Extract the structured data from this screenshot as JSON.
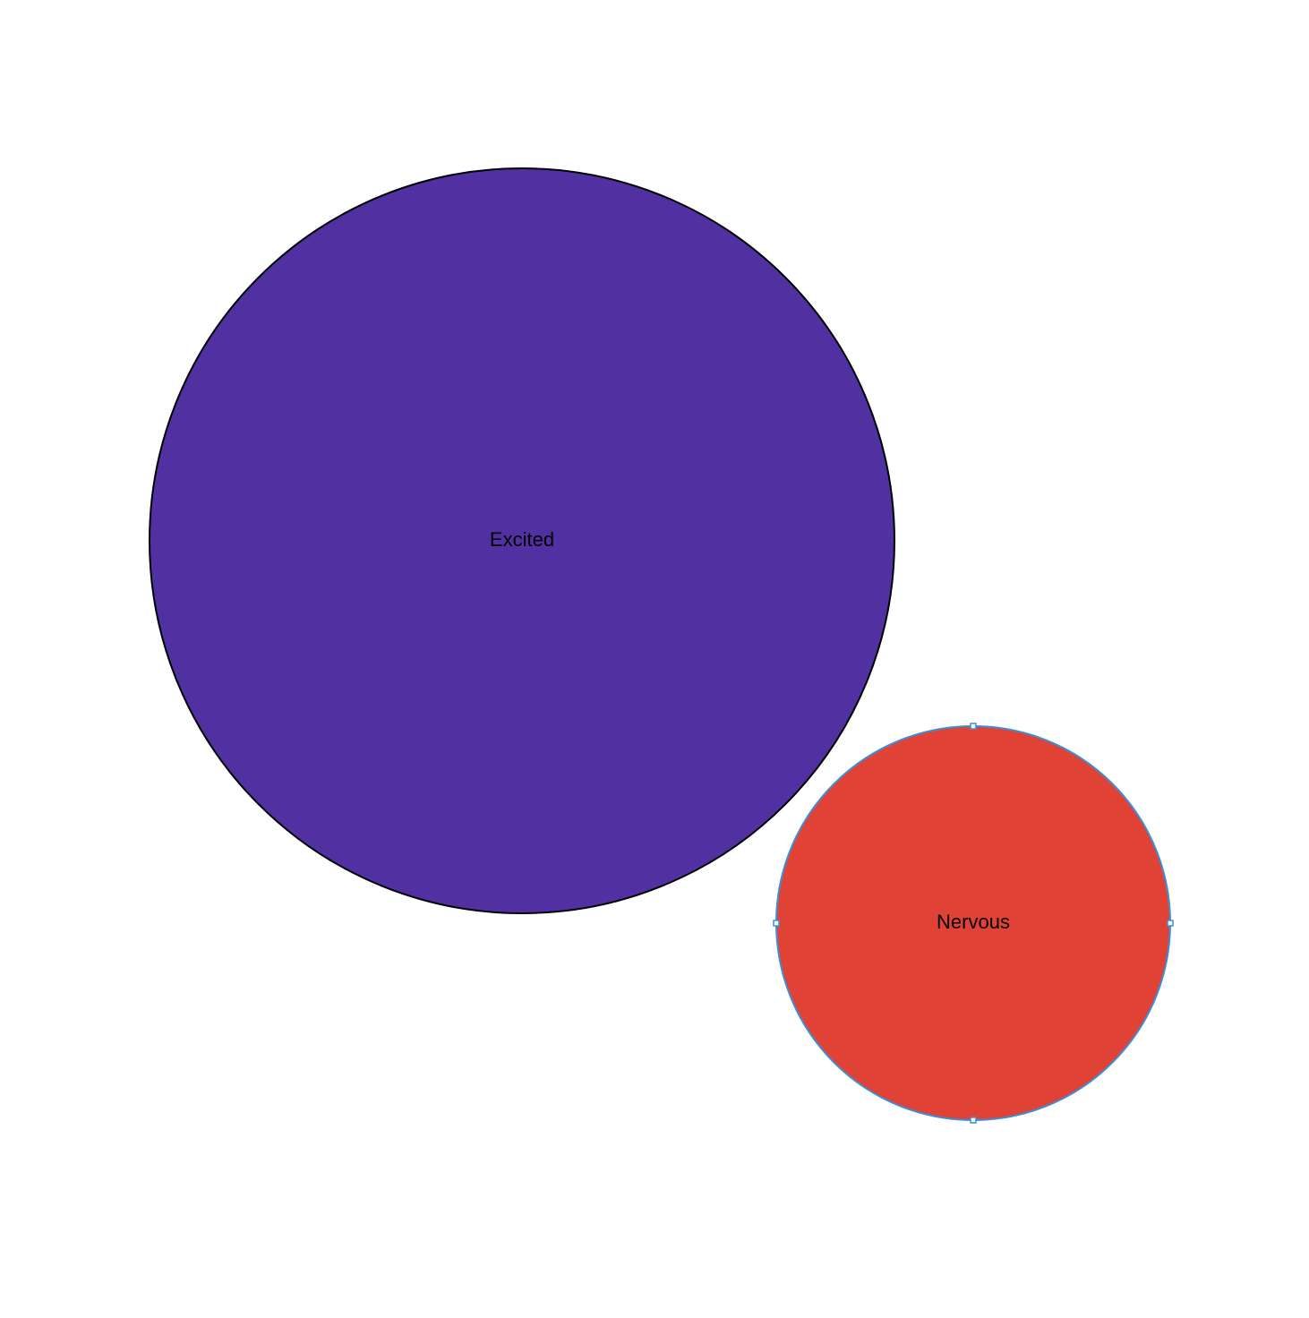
{
  "shapes": [
    {
      "id": "excited",
      "label": "Excited",
      "fill": "#5131A2",
      "stroke": "#000000",
      "selected": false
    },
    {
      "id": "nervous",
      "label": "Nervous",
      "fill": "#E04236",
      "stroke": "#3C8FD6",
      "selected": true
    }
  ],
  "selection_color": "#3C8FD6"
}
